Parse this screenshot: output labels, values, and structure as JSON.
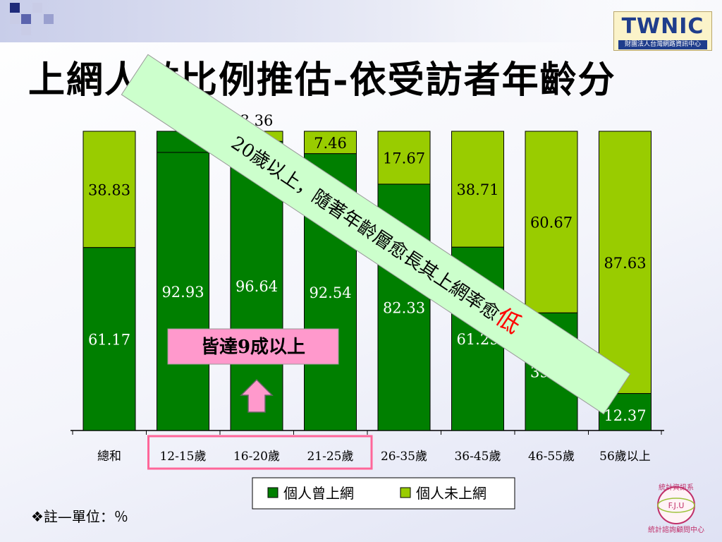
{
  "title": "上網人數比例推估-依受訪者年齡分",
  "logos": {
    "twnic_text": "TWNIC",
    "twnic_sub": "財團法人台灣網路資訊中心",
    "fju_top": "統計資訊系",
    "fju_mid": "F.J.U",
    "fju_bottom": "統計諮詢顧問中心"
  },
  "annotation": {
    "banner_text": "20歲以上，隨著年齡層愈長其上網率愈",
    "banner_emph": "低",
    "callout": "皆達9成以上"
  },
  "note": "❖註—單位：％",
  "colors": {
    "dark_green": "#007f00",
    "light_green": "#99cc00",
    "banner_bg": "#ccffcc",
    "callout_bg": "#ff99cc",
    "emph_red": "#ff0000",
    "highlight_border": "#ff6699"
  },
  "chart_data": {
    "type": "bar",
    "stacked": true,
    "ylim": [
      0,
      100
    ],
    "categories": [
      "總和",
      "12-15歲",
      "16-20歲",
      "21-25歲",
      "26-35歲",
      "36-45歲",
      "46-55歲",
      "56歲以上"
    ],
    "series": [
      {
        "name": "個人曾上網",
        "values": [
          61.17,
          92.93,
          96.64,
          92.54,
          82.33,
          61.29,
          39.33,
          12.37
        ]
      },
      {
        "name": "個人未上網",
        "values": [
          38.83,
          null,
          3.36,
          7.46,
          17.67,
          38.71,
          60.67,
          87.63
        ]
      }
    ],
    "legend": "bottom",
    "grid": false
  }
}
